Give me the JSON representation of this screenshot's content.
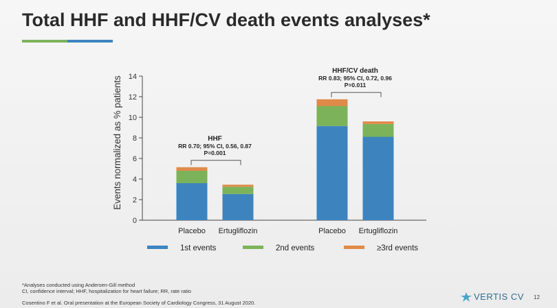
{
  "slide": {
    "title": "Total HHF and HHF/CV death events analyses*",
    "footnote_1": "*Analyses conducted using Andersen-Gill method",
    "footnote_2": "CI, confidence interval; HHF, hospitalization for heart failure; RR, rate ratio",
    "footnote_3": "Cosentino F et al. Oral presentation at the European Society of Cardiology Congress, 31 August 2020.",
    "logo_text": "VERTIS CV",
    "logo_icon": "vertis-logo-icon",
    "page_number": "12",
    "accent_colors": [
      "#7cb35a",
      "#3d84bf"
    ]
  },
  "chart_data": {
    "type": "bar",
    "stacked": true,
    "ylabel": "Events normalized as % patients",
    "ylim": [
      0,
      14
    ],
    "yticks": [
      0,
      2,
      4,
      6,
      8,
      10,
      12,
      14
    ],
    "grid": false,
    "legend_position": "bottom",
    "categories": [
      "Placebo",
      "Ertugliflozin",
      "Placebo",
      "Ertugliflozin"
    ],
    "series": [
      {
        "name": "1st events",
        "color": "#3d84bf",
        "values": [
          3.6,
          2.55,
          9.15,
          8.1
        ]
      },
      {
        "name": "2nd events",
        "color": "#7cb35a",
        "values": [
          1.2,
          0.7,
          1.95,
          1.25
        ]
      },
      {
        "name": "≥3rd events",
        "color": "#e08a4a",
        "values": [
          0.35,
          0.2,
          0.65,
          0.25
        ]
      }
    ],
    "groups": [
      {
        "title": "HHF",
        "stats_line1": "RR 0.70; 95% CI, 0.56, 0.87",
        "stats_line2": "P=0.001",
        "bars": [
          0,
          1
        ]
      },
      {
        "title": "HHF/CV death",
        "stats_line1": "RR 0.83; 95% CI, 0.72, 0.96",
        "stats_line2": "P=0.011",
        "bars": [
          2,
          3
        ]
      }
    ]
  }
}
